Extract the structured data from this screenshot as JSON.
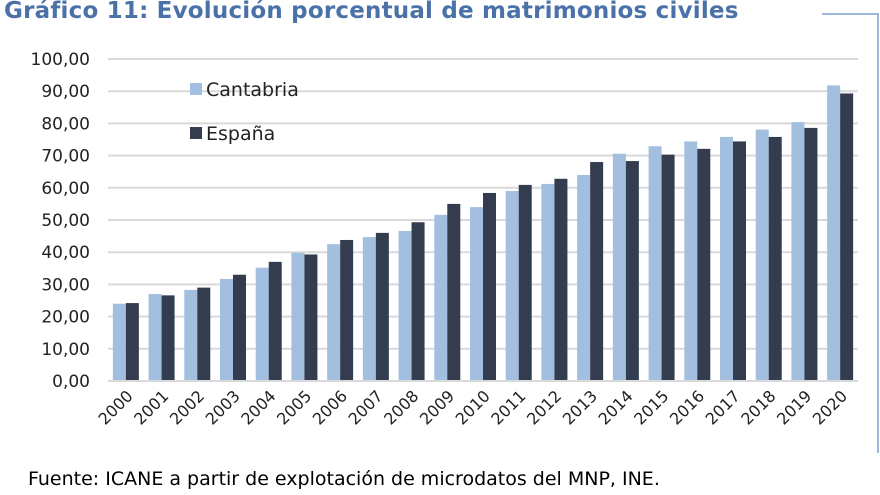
{
  "title": "Gráfico 11: Evolución porcentual de matrimonios civiles",
  "source": "Fuente: ICANE a partir de explotación de microdatos del MNP, INE.",
  "chart_data": {
    "type": "bar",
    "title": "Gráfico 11: Evolución porcentual de matrimonios civiles",
    "xlabel": "",
    "ylabel": "",
    "ylim": [
      0,
      100
    ],
    "yticks": [
      "0,00",
      "10,00",
      "20,00",
      "30,00",
      "40,00",
      "50,00",
      "60,00",
      "70,00",
      "80,00",
      "90,00",
      "100,00"
    ],
    "grid": true,
    "legend_placement": "top-left",
    "categories": [
      "2000",
      "2001",
      "2002",
      "2003",
      "2004",
      "2005",
      "2006",
      "2007",
      "2008",
      "2009",
      "2010",
      "2011",
      "2012",
      "2013",
      "2014",
      "2015",
      "2016",
      "2017",
      "2018",
      "2019",
      "2020"
    ],
    "series": [
      {
        "name": "Cantabria",
        "color": "#a3bfe0",
        "values": [
          24.0,
          27.0,
          28.3,
          31.7,
          35.2,
          39.8,
          42.5,
          44.7,
          46.6,
          51.6,
          54.0,
          59.0,
          61.2,
          64.0,
          70.6,
          72.9,
          74.4,
          75.8,
          78.1,
          80.4,
          91.8
        ]
      },
      {
        "name": "España",
        "color": "#333d4f",
        "values": [
          24.2,
          26.6,
          29.0,
          33.0,
          37.0,
          39.3,
          43.8,
          46.0,
          49.3,
          55.0,
          58.4,
          60.9,
          62.8,
          68.0,
          68.3,
          70.3,
          72.1,
          74.4,
          75.8,
          78.6,
          89.3
        ]
      }
    ]
  }
}
